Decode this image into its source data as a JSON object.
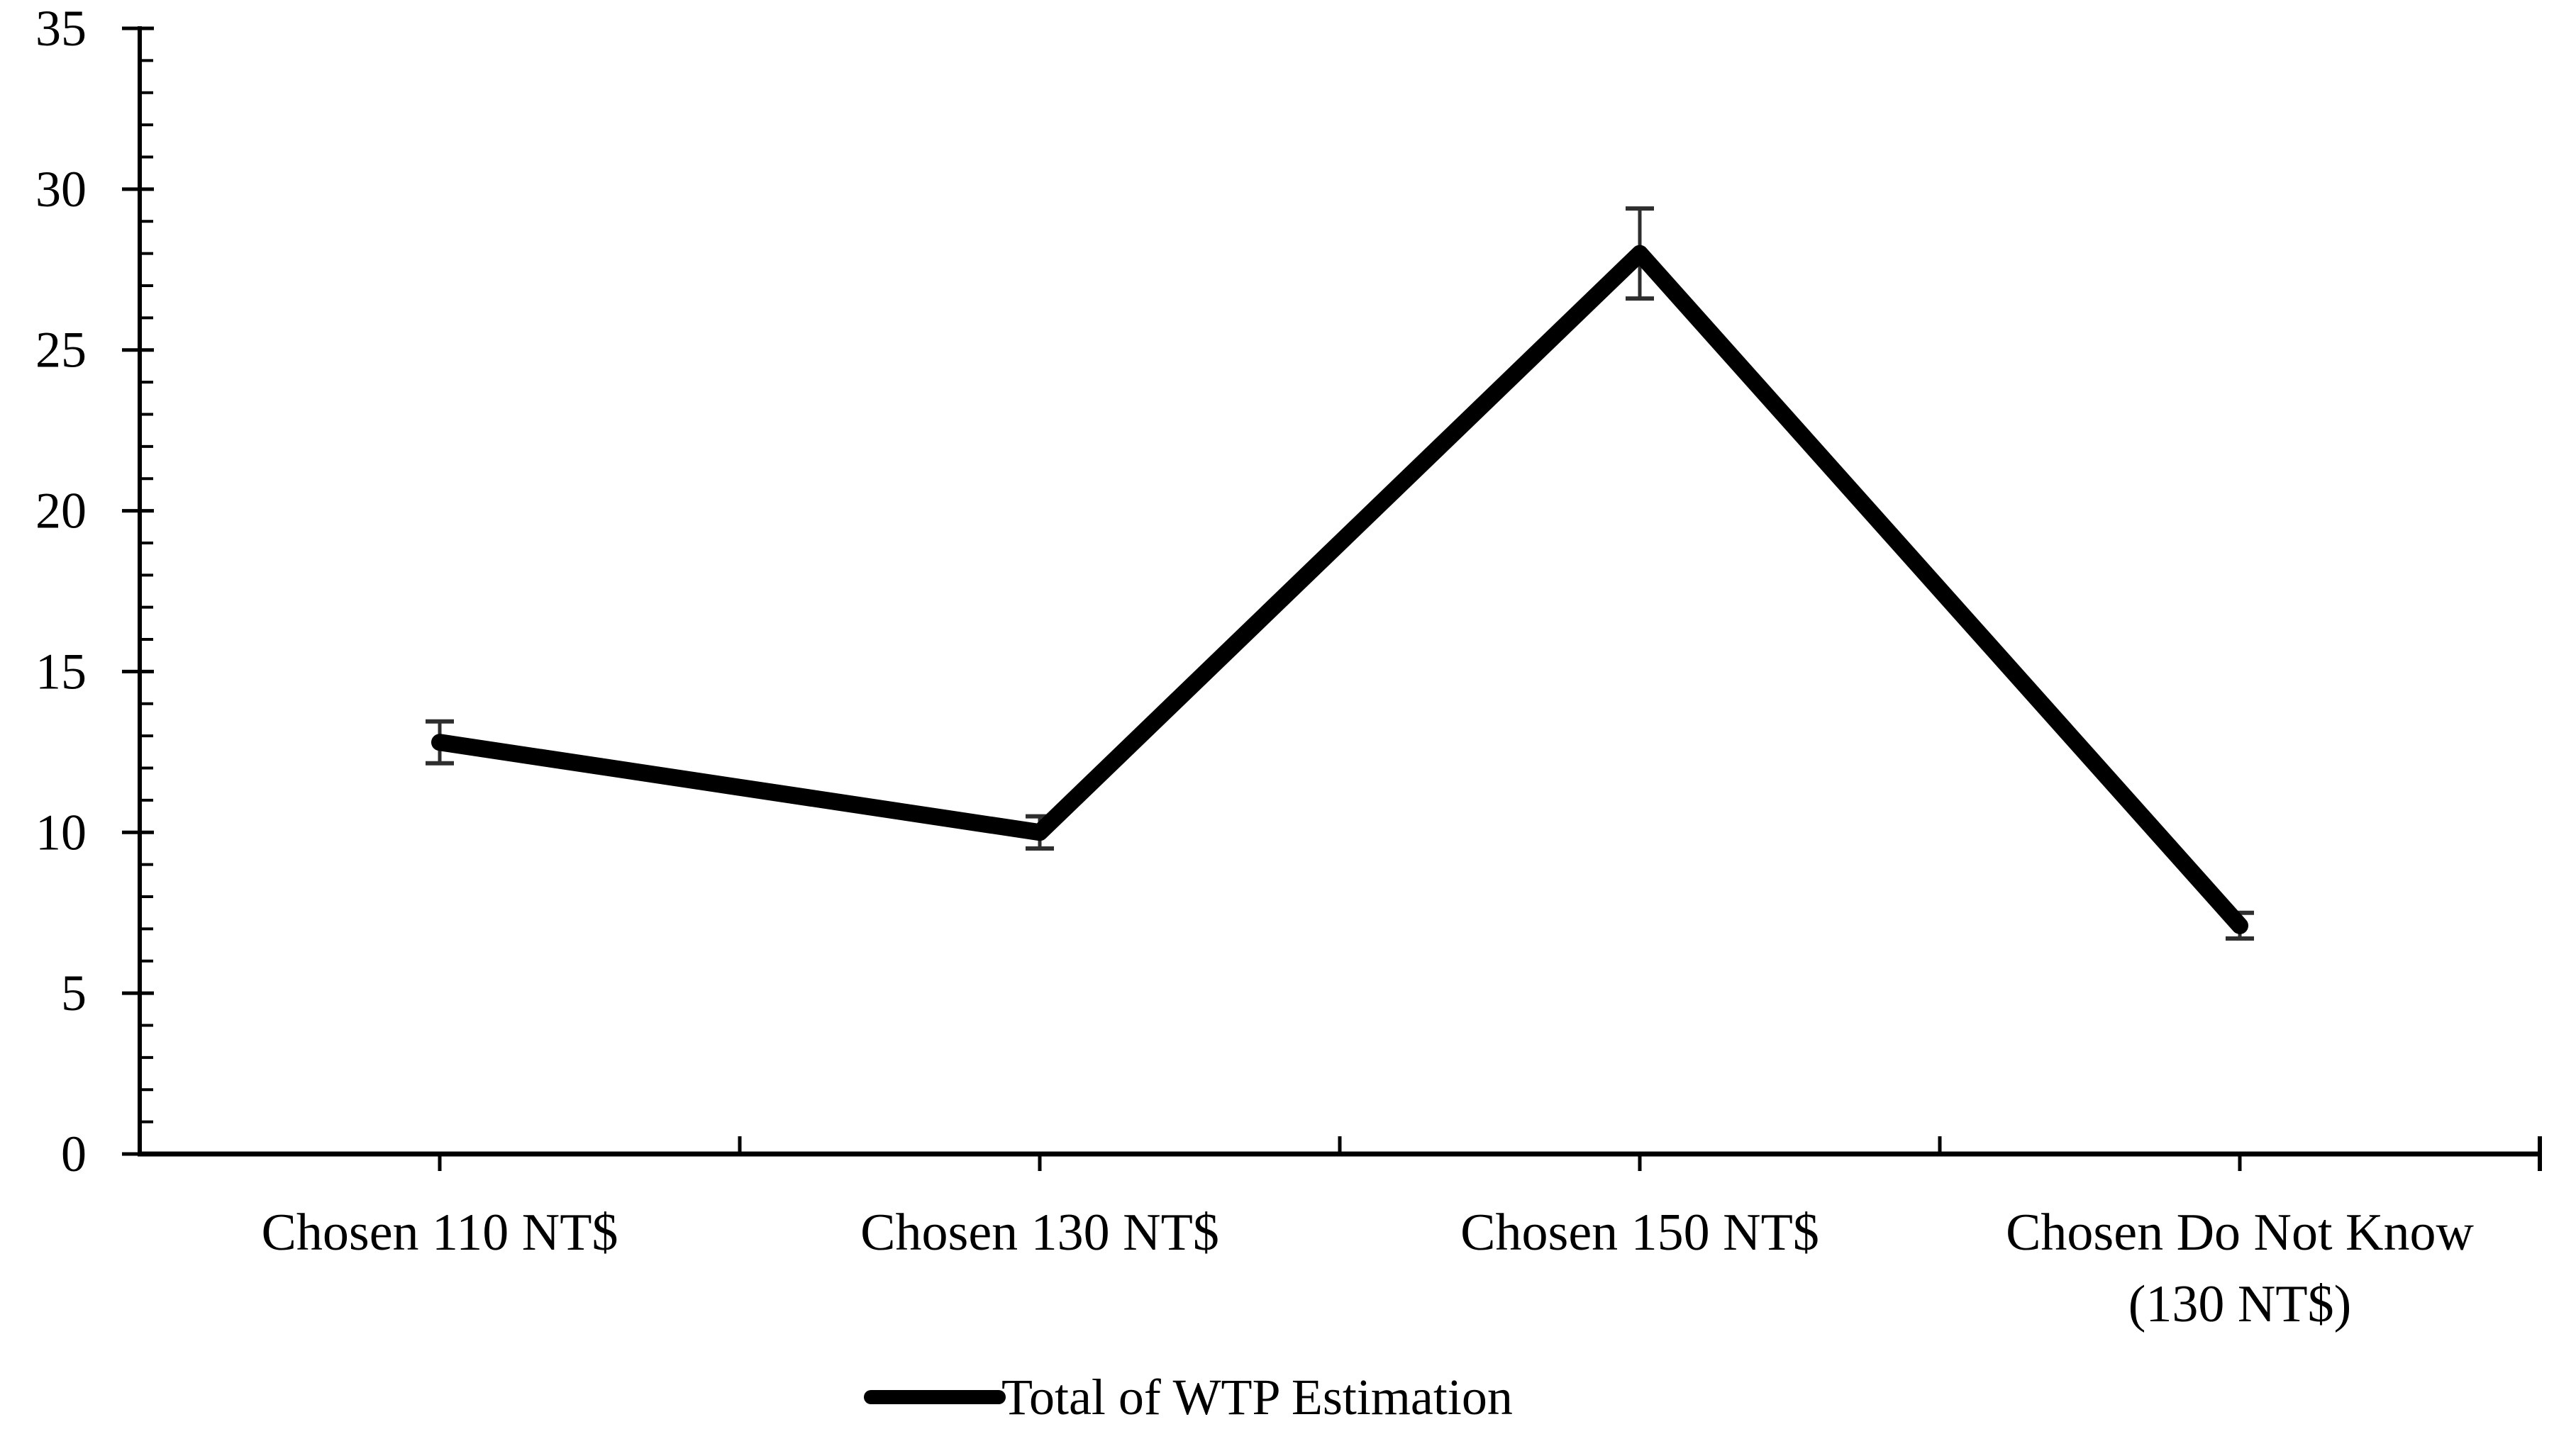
{
  "chart_data": {
    "type": "line",
    "title": "",
    "xlabel": "",
    "ylabel": "",
    "categories": [
      "Chosen 110 NT$",
      "Chosen 130 NT$",
      "Chosen 150 NT$",
      "Chosen Do Not Know\n(130 NT$)"
    ],
    "series": [
      {
        "name": "Total of WTP Estimation",
        "values": [
          12.8,
          10.0,
          28.0,
          7.1
        ],
        "error_bars": [
          0.65,
          0.5,
          1.4,
          0.4
        ]
      }
    ],
    "ylim": [
      0,
      35
    ],
    "y_major_step": 5,
    "y_minor_step": 1,
    "y_tick_labels": [
      "0",
      "5",
      "10",
      "15",
      "20",
      "25",
      "30",
      "35"
    ],
    "grid": "off",
    "legend_position": "bottom-center",
    "colors": {
      "series_line": "#000000",
      "error_bar": "#2e2e2e",
      "axis": "#000000",
      "text": "#000000",
      "background": "#ffffff"
    }
  }
}
